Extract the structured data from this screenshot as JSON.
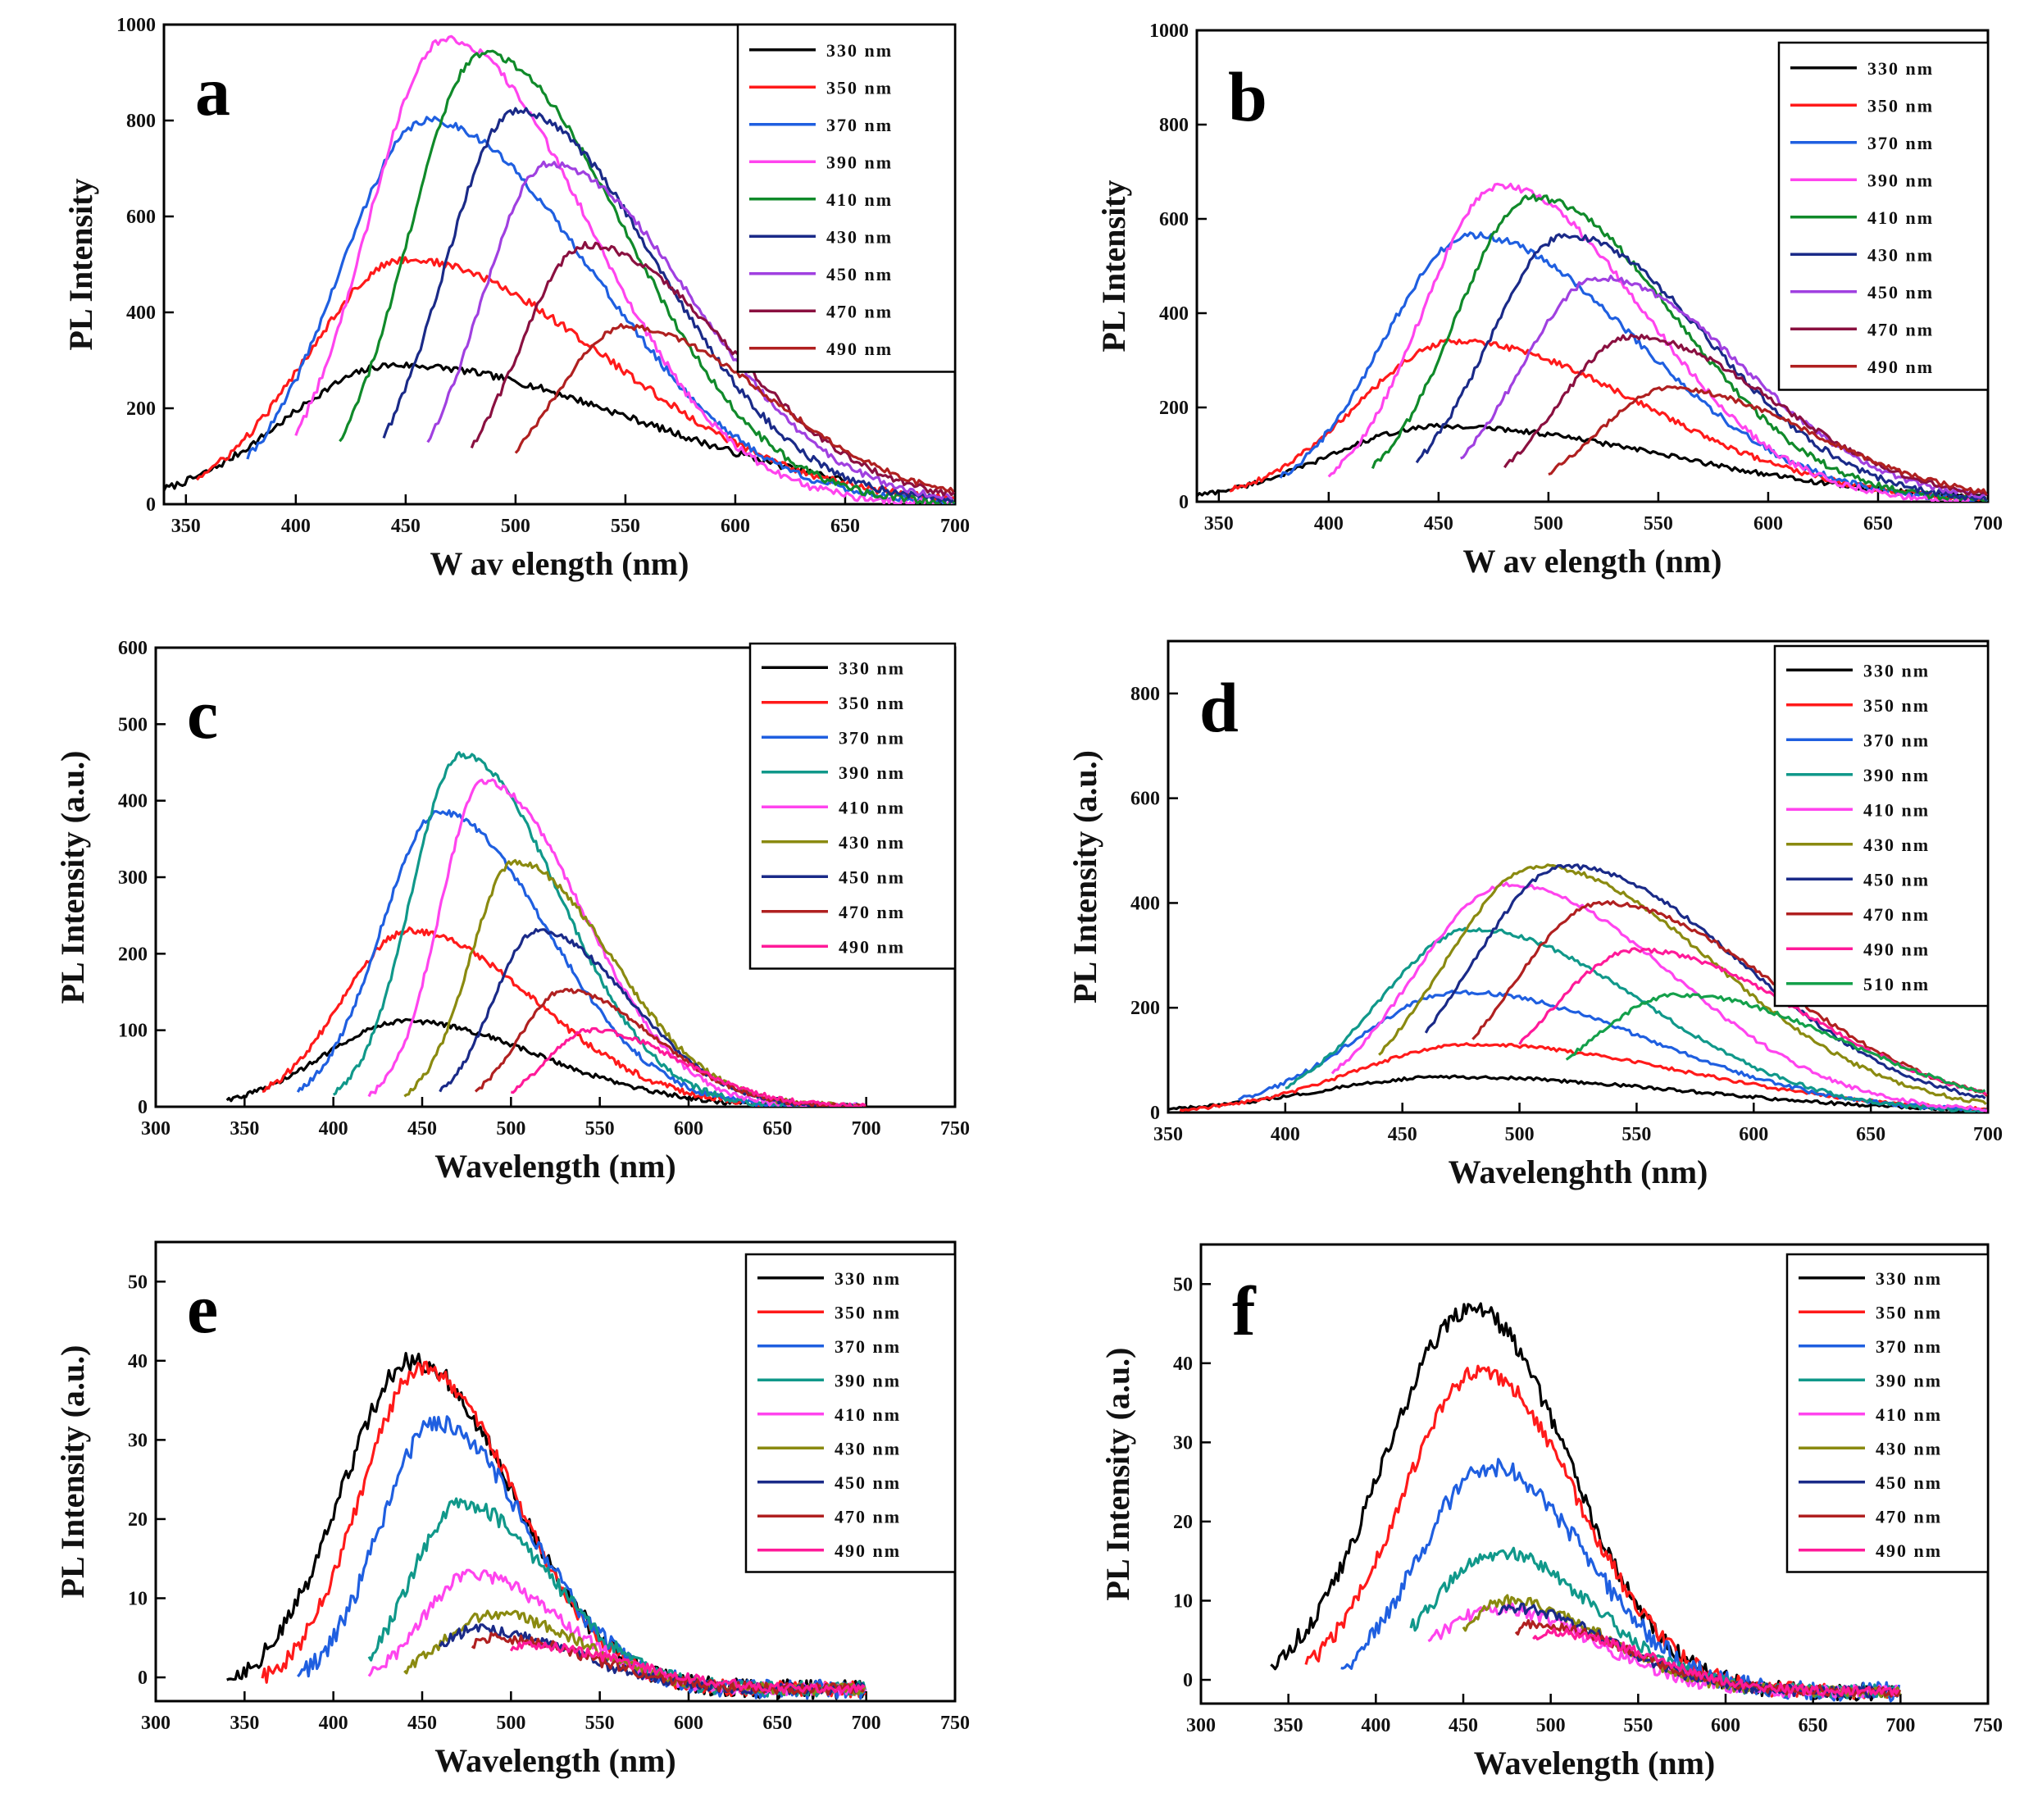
{
  "figure": {
    "title": ""
  },
  "chart_data": [
    {
      "type": "line",
      "panel_label": "a",
      "xlabel": "W av elength (nm)",
      "ylabel": "PL Intensity",
      "xlim": [
        340,
        700
      ],
      "ylim": [
        0,
        1000
      ],
      "xticks": [
        350,
        400,
        450,
        500,
        550,
        600,
        650,
        700
      ],
      "yticks": [
        0,
        200,
        400,
        600,
        800,
        1000
      ],
      "legend_position": "top-right",
      "series": [
        {
          "name": "330 nm",
          "color": "#000000",
          "start": 340,
          "end": 650,
          "peak_x": 445,
          "peak_y": 290,
          "wl": 50,
          "wr": 110,
          "noise": 7
        },
        {
          "name": "350 nm",
          "color": "#ff1a1a",
          "start": 355,
          "end": 700,
          "peak_x": 450,
          "peak_y": 510,
          "wl": 45,
          "wr": 90,
          "noise": 8
        },
        {
          "name": "370 nm",
          "color": "#1f5fe0",
          "start": 378,
          "end": 700,
          "peak_x": 460,
          "peak_y": 800,
          "wl": 40,
          "wr": 75,
          "noise": 8
        },
        {
          "name": "390 nm",
          "color": "#ff44ee",
          "start": 400,
          "end": 700,
          "peak_x": 468,
          "peak_y": 970,
          "wl": 35,
          "wr": 65,
          "noise": 8
        },
        {
          "name": "410 nm",
          "color": "#108a2a",
          "start": 420,
          "end": 700,
          "peak_x": 485,
          "peak_y": 940,
          "wl": 33,
          "wr": 65,
          "noise": 8
        },
        {
          "name": "430 nm",
          "color": "#1a2a88",
          "start": 440,
          "end": 700,
          "peak_x": 500,
          "peak_y": 820,
          "wl": 32,
          "wr": 65,
          "noise": 8
        },
        {
          "name": "450 nm",
          "color": "#a040e0",
          "start": 460,
          "end": 700,
          "peak_x": 515,
          "peak_y": 710,
          "wl": 30,
          "wr": 65,
          "noise": 7
        },
        {
          "name": "470 nm",
          "color": "#8a1040",
          "start": 480,
          "end": 700,
          "peak_x": 532,
          "peak_y": 540,
          "wl": 30,
          "wr": 65,
          "noise": 7
        },
        {
          "name": "490 nm",
          "color": "#b02020",
          "start": 500,
          "end": 700,
          "peak_x": 550,
          "peak_y": 370,
          "wl": 32,
          "wr": 65,
          "noise": 6
        }
      ]
    },
    {
      "type": "line",
      "panel_label": "b",
      "xlabel": "W av elength (nm)",
      "ylabel": "PL Intensity",
      "xlim": [
        340,
        700
      ],
      "ylim": [
        0,
        1000
      ],
      "xticks": [
        350,
        400,
        450,
        500,
        550,
        600,
        650,
        700
      ],
      "yticks": [
        0,
        200,
        400,
        600,
        800,
        1000
      ],
      "legend_position": "top-right",
      "series": [
        {
          "name": "330 nm",
          "color": "#000000",
          "start": 340,
          "end": 700,
          "peak_x": 450,
          "peak_y": 160,
          "wl": 50,
          "wr": 105,
          "noise": 5
        },
        {
          "name": "350 nm",
          "color": "#ff1a1a",
          "start": 355,
          "end": 700,
          "peak_x": 458,
          "peak_y": 340,
          "wl": 45,
          "wr": 85,
          "noise": 6
        },
        {
          "name": "370 nm",
          "color": "#1f5fe0",
          "start": 378,
          "end": 700,
          "peak_x": 465,
          "peak_y": 565,
          "wl": 40,
          "wr": 75,
          "noise": 7
        },
        {
          "name": "390 nm",
          "color": "#ff44ee",
          "start": 400,
          "end": 700,
          "peak_x": 478,
          "peak_y": 670,
          "wl": 35,
          "wr": 65,
          "noise": 7
        },
        {
          "name": "410 nm",
          "color": "#108a2a",
          "start": 420,
          "end": 700,
          "peak_x": 493,
          "peak_y": 645,
          "wl": 35,
          "wr": 65,
          "noise": 7
        },
        {
          "name": "430 nm",
          "color": "#1a2a88",
          "start": 440,
          "end": 700,
          "peak_x": 508,
          "peak_y": 565,
          "wl": 35,
          "wr": 65,
          "noise": 7
        },
        {
          "name": "450 nm",
          "color": "#a040e0",
          "start": 460,
          "end": 700,
          "peak_x": 523,
          "peak_y": 475,
          "wl": 35,
          "wr": 65,
          "noise": 6
        },
        {
          "name": "470 nm",
          "color": "#8a1040",
          "start": 480,
          "end": 700,
          "peak_x": 538,
          "peak_y": 350,
          "wl": 33,
          "wr": 65,
          "noise": 6
        },
        {
          "name": "490 nm",
          "color": "#b02020",
          "start": 500,
          "end": 700,
          "peak_x": 555,
          "peak_y": 240,
          "wl": 33,
          "wr": 65,
          "noise": 5
        }
      ]
    },
    {
      "type": "line",
      "panel_label": "c",
      "xlabel": "Wavelength (nm)",
      "ylabel": "PL Intensity (a.u.)",
      "xlim": [
        300,
        750
      ],
      "ylim": [
        0,
        600
      ],
      "xticks": [
        300,
        350,
        400,
        450,
        500,
        550,
        600,
        650,
        700,
        750
      ],
      "yticks": [
        0,
        100,
        200,
        300,
        400,
        500,
        600
      ],
      "legend_position": "top-right",
      "series": [
        {
          "name": "330 nm",
          "color": "#000000",
          "start": 340,
          "end": 700,
          "peak_x": 440,
          "peak_y": 112,
          "wl": 45,
          "wr": 75,
          "noise": 3
        },
        {
          "name": "350 nm",
          "color": "#ff1a1a",
          "start": 360,
          "end": 700,
          "peak_x": 443,
          "peak_y": 230,
          "wl": 38,
          "wr": 70,
          "noise": 4
        },
        {
          "name": "370 nm",
          "color": "#1f5fe0",
          "start": 380,
          "end": 700,
          "peak_x": 460,
          "peak_y": 385,
          "wl": 33,
          "wr": 60,
          "noise": 4
        },
        {
          "name": "390 nm",
          "color": "#10988a",
          "start": 400,
          "end": 700,
          "peak_x": 472,
          "peak_y": 460,
          "wl": 28,
          "wr": 55,
          "noise": 4
        },
        {
          "name": "410 nm",
          "color": "#ff44ee",
          "start": 420,
          "end": 700,
          "peak_x": 485,
          "peak_y": 425,
          "wl": 25,
          "wr": 55,
          "noise": 4
        },
        {
          "name": "430 nm",
          "color": "#8a8a10",
          "start": 440,
          "end": 700,
          "peak_x": 502,
          "peak_y": 320,
          "wl": 25,
          "wr": 55,
          "noise": 4
        },
        {
          "name": "450 nm",
          "color": "#1a2a88",
          "start": 460,
          "end": 700,
          "peak_x": 515,
          "peak_y": 230,
          "wl": 25,
          "wr": 52,
          "noise": 3
        },
        {
          "name": "470 nm",
          "color": "#b02020",
          "start": 480,
          "end": 700,
          "peak_x": 530,
          "peak_y": 152,
          "wl": 25,
          "wr": 50,
          "noise": 3
        },
        {
          "name": "490 nm",
          "color": "#ff1a99",
          "start": 500,
          "end": 700,
          "peak_x": 545,
          "peak_y": 100,
          "wl": 25,
          "wr": 50,
          "noise": 3
        }
      ]
    },
    {
      "type": "line",
      "panel_label": "d",
      "xlabel": "Wavelenghth (nm)",
      "ylabel": "PL Intensity (a.u.)",
      "xlim": [
        350,
        700
      ],
      "ylim": [
        0,
        900
      ],
      "xticks": [
        350,
        400,
        450,
        500,
        550,
        600,
        650,
        700
      ],
      "yticks": [
        0,
        200,
        400,
        600,
        800
      ],
      "legend_position": "top-right",
      "series": [
        {
          "name": "330 nm",
          "color": "#000000",
          "start": 350,
          "end": 700,
          "peak_x": 470,
          "peak_y": 68,
          "wl": 55,
          "wr": 100,
          "noise": 3
        },
        {
          "name": "350 nm",
          "color": "#ff1a1a",
          "start": 355,
          "end": 700,
          "peak_x": 480,
          "peak_y": 130,
          "wl": 50,
          "wr": 90,
          "noise": 3
        },
        {
          "name": "370 nm",
          "color": "#1f5fe0",
          "start": 380,
          "end": 700,
          "peak_x": 475,
          "peak_y": 230,
          "wl": 45,
          "wr": 80,
          "noise": 4
        },
        {
          "name": "390 nm",
          "color": "#10988a",
          "start": 400,
          "end": 700,
          "peak_x": 480,
          "peak_y": 350,
          "wl": 40,
          "wr": 72,
          "noise": 4
        },
        {
          "name": "410 nm",
          "color": "#ff44ee",
          "start": 420,
          "end": 700,
          "peak_x": 495,
          "peak_y": 435,
          "wl": 40,
          "wr": 70,
          "noise": 4
        },
        {
          "name": "430 nm",
          "color": "#8a8a10",
          "start": 440,
          "end": 700,
          "peak_x": 508,
          "peak_y": 470,
          "wl": 40,
          "wr": 75,
          "noise": 4
        },
        {
          "name": "450 nm",
          "color": "#1a2a88",
          "start": 460,
          "end": 700,
          "peak_x": 520,
          "peak_y": 470,
          "wl": 40,
          "wr": 75,
          "noise": 4
        },
        {
          "name": "470 nm",
          "color": "#b02020",
          "start": 480,
          "end": 700,
          "peak_x": 535,
          "peak_y": 400,
          "wl": 38,
          "wr": 75,
          "noise": 4
        },
        {
          "name": "490 nm",
          "color": "#ff1a99",
          "start": 500,
          "end": 700,
          "peak_x": 550,
          "peak_y": 310,
          "wl": 38,
          "wr": 72,
          "noise": 4
        },
        {
          "name": "510 nm",
          "color": "#13a04a",
          "start": 520,
          "end": 700,
          "peak_x": 568,
          "peak_y": 225,
          "wl": 38,
          "wr": 70,
          "noise": 4
        }
      ]
    },
    {
      "type": "line",
      "panel_label": "e",
      "xlabel": "Wavelength (nm)",
      "ylabel": "PL Intensity (a.u.)",
      "xlim": [
        300,
        750
      ],
      "ylim": [
        -3,
        55
      ],
      "xticks": [
        300,
        350,
        400,
        450,
        500,
        550,
        600,
        650,
        700,
        750
      ],
      "yticks": [
        0,
        10,
        20,
        30,
        40,
        50
      ],
      "legend_position": "top-right",
      "series": [
        {
          "name": "330 nm",
          "color": "#000000",
          "start": 340,
          "end": 700,
          "peak_x": 445,
          "peak_y": 40,
          "wl": 40,
          "wr": 55,
          "noise": 1.2,
          "base": -1.5
        },
        {
          "name": "350 nm",
          "color": "#ff1a1a",
          "start": 360,
          "end": 700,
          "peak_x": 450,
          "peak_y": 39,
          "wl": 35,
          "wr": 52,
          "noise": 1.0,
          "base": -1.5
        },
        {
          "name": "370 nm",
          "color": "#1f5fe0",
          "start": 380,
          "end": 700,
          "peak_x": 458,
          "peak_y": 32,
          "wl": 32,
          "wr": 52,
          "noise": 1.2,
          "base": -1.5
        },
        {
          "name": "390 nm",
          "color": "#10988a",
          "start": 420,
          "end": 700,
          "peak_x": 472,
          "peak_y": 22,
          "wl": 28,
          "wr": 50,
          "noise": 1.0,
          "base": -1.5
        },
        {
          "name": "410 nm",
          "color": "#ff44ee",
          "start": 420,
          "end": 700,
          "peak_x": 478,
          "peak_y": 13,
          "wl": 28,
          "wr": 50,
          "noise": 0.8,
          "base": -1.5
        },
        {
          "name": "430 nm",
          "color": "#8a8a10",
          "start": 440,
          "end": 700,
          "peak_x": 490,
          "peak_y": 8,
          "wl": 30,
          "wr": 50,
          "noise": 0.7,
          "base": -1.5
        },
        {
          "name": "450 nm",
          "color": "#1a2a88",
          "start": 460,
          "end": 700,
          "peak_x": 480,
          "peak_y": 6,
          "wl": 25,
          "wr": 55,
          "noise": 0.7,
          "base": -1.5
        },
        {
          "name": "470 nm",
          "color": "#b02020",
          "start": 478,
          "end": 700,
          "peak_x": 490,
          "peak_y": 5,
          "wl": 20,
          "wr": 55,
          "noise": 0.7,
          "base": -1.5
        },
        {
          "name": "490 nm",
          "color": "#ff1a99",
          "start": 500,
          "end": 700,
          "peak_x": 510,
          "peak_y": 4,
          "wl": 20,
          "wr": 55,
          "noise": 0.6,
          "base": -1.5
        }
      ]
    },
    {
      "type": "line",
      "panel_label": "f",
      "xlabel": "Wavelength (nm)",
      "ylabel": "PL Intensity (a.u.)",
      "xlim": [
        300,
        750
      ],
      "ylim": [
        -3,
        55
      ],
      "xticks": [
        300,
        350,
        400,
        450,
        500,
        550,
        600,
        650,
        700,
        750
      ],
      "yticks": [
        0,
        10,
        20,
        30,
        40,
        50
      ],
      "legend_position": "top-right",
      "series": [
        {
          "name": "330 nm",
          "color": "#000000",
          "start": 340,
          "end": 700,
          "peak_x": 455,
          "peak_y": 47,
          "wl": 50,
          "wr": 55,
          "noise": 1.2,
          "base": -1.5
        },
        {
          "name": "350 nm",
          "color": "#ff1a1a",
          "start": 360,
          "end": 700,
          "peak_x": 460,
          "peak_y": 39,
          "wl": 45,
          "wr": 55,
          "noise": 1.0,
          "base": -1.5
        },
        {
          "name": "370 nm",
          "color": "#1f5fe0",
          "start": 380,
          "end": 700,
          "peak_x": 465,
          "peak_y": 27,
          "wl": 40,
          "wr": 55,
          "noise": 1.2,
          "base": -1.5
        },
        {
          "name": "390 nm",
          "color": "#10988a",
          "start": 420,
          "end": 700,
          "peak_x": 470,
          "peak_y": 16,
          "wl": 40,
          "wr": 55,
          "noise": 0.9,
          "base": -1.5
        },
        {
          "name": "410 nm",
          "color": "#ff44ee",
          "start": 430,
          "end": 700,
          "peak_x": 470,
          "peak_y": 9,
          "wl": 40,
          "wr": 55,
          "noise": 0.8,
          "base": -1.5
        },
        {
          "name": "430 nm",
          "color": "#8a8a10",
          "start": 450,
          "end": 700,
          "peak_x": 475,
          "peak_y": 10,
          "wl": 30,
          "wr": 55,
          "noise": 0.7,
          "base": -1.5
        },
        {
          "name": "450 nm",
          "color": "#1a2a88",
          "start": 470,
          "end": 700,
          "peak_x": 480,
          "peak_y": 9,
          "wl": 25,
          "wr": 55,
          "noise": 0.7,
          "base": -1.5
        },
        {
          "name": "470 nm",
          "color": "#b02020",
          "start": 480,
          "end": 700,
          "peak_x": 490,
          "peak_y": 7,
          "wl": 20,
          "wr": 55,
          "noise": 0.6,
          "base": -1.5
        },
        {
          "name": "490 nm",
          "color": "#ff1a99",
          "start": 490,
          "end": 700,
          "peak_x": 500,
          "peak_y": 6,
          "wl": 20,
          "wr": 55,
          "noise": 0.6,
          "base": -1.5
        }
      ]
    }
  ]
}
